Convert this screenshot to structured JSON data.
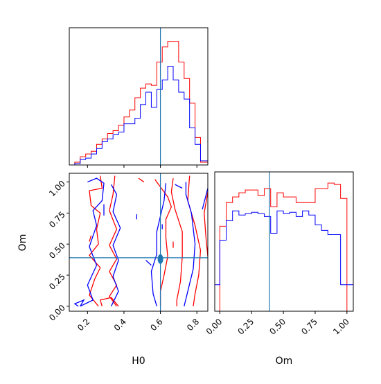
{
  "chart_data": [
    {
      "type": "histogram",
      "panel": "H0 marginal (top-left)",
      "truth": 0.6,
      "x_range": [
        0.1,
        0.86
      ],
      "y_ticks": "none",
      "series": [
        {
          "color": "#ff0000",
          "bins": [
            [
              0.1,
              0.13,
              0.0
            ],
            [
              0.13,
              0.16,
              0.02
            ],
            [
              0.16,
              0.19,
              0.06
            ],
            [
              0.19,
              0.22,
              0.08
            ],
            [
              0.22,
              0.25,
              0.1
            ],
            [
              0.25,
              0.28,
              0.15
            ],
            [
              0.28,
              0.31,
              0.19
            ],
            [
              0.31,
              0.34,
              0.23
            ],
            [
              0.34,
              0.37,
              0.25
            ],
            [
              0.37,
              0.4,
              0.29
            ],
            [
              0.4,
              0.43,
              0.35
            ],
            [
              0.43,
              0.46,
              0.4
            ],
            [
              0.46,
              0.49,
              0.49
            ],
            [
              0.49,
              0.52,
              0.56
            ],
            [
              0.52,
              0.55,
              0.59
            ],
            [
              0.55,
              0.58,
              0.58
            ],
            [
              0.58,
              0.61,
              0.75
            ],
            [
              0.61,
              0.64,
              0.86
            ],
            [
              0.64,
              0.67,
              0.9
            ],
            [
              0.67,
              0.7,
              0.9
            ],
            [
              0.7,
              0.73,
              0.75
            ],
            [
              0.73,
              0.76,
              0.63
            ],
            [
              0.76,
              0.79,
              0.45
            ],
            [
              0.79,
              0.82,
              0.2
            ],
            [
              0.82,
              0.86,
              0.02
            ]
          ]
        },
        {
          "color": "#0000ff",
          "bins": [
            [
              0.1,
              0.13,
              0.0
            ],
            [
              0.13,
              0.16,
              0.01
            ],
            [
              0.16,
              0.19,
              0.04
            ],
            [
              0.19,
              0.22,
              0.05
            ],
            [
              0.22,
              0.25,
              0.08
            ],
            [
              0.25,
              0.28,
              0.12
            ],
            [
              0.28,
              0.31,
              0.17
            ],
            [
              0.31,
              0.34,
              0.19
            ],
            [
              0.34,
              0.37,
              0.22
            ],
            [
              0.37,
              0.4,
              0.24
            ],
            [
              0.4,
              0.43,
              0.3
            ],
            [
              0.43,
              0.46,
              0.3
            ],
            [
              0.46,
              0.49,
              0.34
            ],
            [
              0.49,
              0.52,
              0.44
            ],
            [
              0.52,
              0.55,
              0.53
            ],
            [
              0.55,
              0.58,
              0.42
            ],
            [
              0.58,
              0.61,
              0.55
            ],
            [
              0.61,
              0.64,
              0.62
            ],
            [
              0.64,
              0.67,
              0.72
            ],
            [
              0.67,
              0.7,
              0.62
            ],
            [
              0.7,
              0.73,
              0.53
            ],
            [
              0.73,
              0.76,
              0.48
            ],
            [
              0.76,
              0.79,
              0.27
            ],
            [
              0.79,
              0.82,
              0.15
            ],
            [
              0.82,
              0.86,
              0.03
            ]
          ]
        }
      ]
    },
    {
      "type": "contour",
      "panel": "H0 vs Om joint (bottom-left)",
      "xlabel": "H0",
      "ylabel": "Om",
      "x_range": [
        0.1,
        0.86
      ],
      "y_range": [
        -0.04,
        1.07
      ],
      "x_ticks": [
        0.2,
        0.4,
        0.6,
        0.8
      ],
      "x_tick_labels": [
        "0.2",
        "0.4",
        "0.6",
        "0.8"
      ],
      "y_ticks": [
        0.0,
        0.25,
        0.5,
        0.75,
        1.0
      ],
      "y_tick_labels": [
        "0.00",
        "0.25",
        "0.50",
        "0.75",
        "1.00"
      ],
      "truth": {
        "x": 0.6,
        "y": 0.39
      },
      "series": [
        {
          "color": "#ff0000",
          "contours": [
            [
              [
                0.27,
                1.05
              ],
              [
                0.28,
                0.95
              ],
              [
                0.21,
                0.93
              ],
              [
                0.22,
                0.81
              ],
              [
                0.27,
                0.75
              ],
              [
                0.25,
                0.62
              ],
              [
                0.26,
                0.5
              ],
              [
                0.21,
                0.41
              ],
              [
                0.27,
                0.31
              ],
              [
                0.24,
                0.22
              ],
              [
                0.21,
                0.09
              ],
              [
                0.26,
                0.0
              ]
            ],
            [
              [
                0.35,
                1.05
              ],
              [
                0.34,
                0.9
              ],
              [
                0.32,
                0.77
              ],
              [
                0.36,
                0.62
              ],
              [
                0.32,
                0.49
              ],
              [
                0.36,
                0.38
              ],
              [
                0.32,
                0.28
              ],
              [
                0.36,
                0.17
              ],
              [
                0.32,
                0.08
              ],
              [
                0.36,
                0.0
              ]
            ],
            [
              [
                0.28,
                0.0
              ],
              [
                0.27,
                0.05
              ],
              [
                0.33,
                0.07
              ],
              [
                0.37,
                0.0
              ]
            ],
            [
              [
                0.22,
                0.57
              ],
              [
                0.21,
                0.52
              ]
            ],
            [
              [
                0.48,
                1.03
              ],
              [
                0.51,
                1.0
              ]
            ],
            [
              [
                0.57,
                1.02
              ],
              [
                0.59,
                0.98
              ],
              [
                0.64,
                0.88
              ],
              [
                0.66,
                0.8
              ],
              [
                0.63,
                0.7
              ],
              [
                0.63,
                0.55
              ],
              [
                0.64,
                0.4
              ],
              [
                0.62,
                0.25
              ],
              [
                0.6,
                0.12
              ],
              [
                0.6,
                0.0
              ]
            ],
            [
              [
                0.67,
                1.03
              ],
              [
                0.66,
                0.92
              ],
              [
                0.68,
                0.78
              ],
              [
                0.72,
                0.6
              ],
              [
                0.72,
                0.4
              ],
              [
                0.71,
                0.2
              ],
              [
                0.69,
                0.05
              ],
              [
                0.69,
                0.0
              ]
            ],
            [
              [
                0.76,
                1.05
              ],
              [
                0.75,
                0.85
              ],
              [
                0.79,
                0.65
              ],
              [
                0.82,
                0.45
              ],
              [
                0.81,
                0.25
              ],
              [
                0.79,
                0.1
              ],
              [
                0.78,
                0.0
              ]
            ],
            [
              [
                0.86,
                0.92
              ],
              [
                0.84,
                0.75
              ],
              [
                0.85,
                0.55
              ],
              [
                0.86,
                0.4
              ]
            ],
            [
              [
                0.67,
                0.52
              ],
              [
                0.67,
                0.47
              ]
            ]
          ]
        },
        {
          "color": "#0000ff",
          "contours": [
            [
              [
                0.2,
                1.0
              ],
              [
                0.25,
                1.03
              ],
              [
                0.29,
                0.99
              ],
              [
                0.28,
                0.85
              ],
              [
                0.23,
                0.77
              ],
              [
                0.25,
                0.65
              ],
              [
                0.21,
                0.48
              ],
              [
                0.25,
                0.33
              ],
              [
                0.2,
                0.17
              ],
              [
                0.23,
                0.05
              ],
              [
                0.16,
                0.0
              ]
            ],
            [
              [
                0.33,
                0.98
              ],
              [
                0.36,
                0.9
              ],
              [
                0.34,
                0.76
              ],
              [
                0.38,
                0.63
              ],
              [
                0.34,
                0.49
              ],
              [
                0.37,
                0.37
              ],
              [
                0.34,
                0.24
              ],
              [
                0.37,
                0.12
              ],
              [
                0.33,
                0.0
              ]
            ],
            [
              [
                0.16,
                0.0
              ],
              [
                0.18,
                0.05
              ],
              [
                0.13,
                0.02
              ],
              [
                0.15,
                0.0
              ]
            ],
            [
              [
                0.29,
                0.82
              ],
              [
                0.29,
                0.73
              ]
            ],
            [
              [
                0.47,
                0.74
              ],
              [
                0.47,
                0.7
              ]
            ],
            [
              [
                0.52,
                0.37
              ],
              [
                0.55,
                0.33
              ]
            ],
            [
              [
                0.63,
                0.99
              ],
              [
                0.62,
                0.85
              ],
              [
                0.58,
                0.6
              ],
              [
                0.58,
                0.42
              ],
              [
                0.55,
                0.28
              ],
              [
                0.56,
                0.1
              ],
              [
                0.58,
                0.0
              ]
            ],
            [
              [
                0.74,
                1.0
              ],
              [
                0.74,
                0.9
              ],
              [
                0.77,
                0.75
              ],
              [
                0.79,
                0.5
              ],
              [
                0.78,
                0.3
              ],
              [
                0.75,
                0.12
              ],
              [
                0.73,
                0.0
              ]
            ],
            [
              [
                0.68,
                0.98
              ],
              [
                0.72,
                0.95
              ]
            ],
            [
              [
                0.61,
                0.66
              ],
              [
                0.61,
                0.62
              ]
            ],
            [
              [
                0.83,
                0.78
              ],
              [
                0.86,
                0.95
              ]
            ]
          ]
        }
      ],
      "filled_blob": {
        "x": 0.6,
        "y": 0.38,
        "color": "#1f77b4"
      }
    },
    {
      "type": "histogram",
      "panel": "Om marginal (bottom-right)",
      "xlabel": "Om",
      "truth": 0.39,
      "x_range": [
        -0.04,
        1.05
      ],
      "x_ticks": [
        0.0,
        0.25,
        0.5,
        0.75,
        1.0
      ],
      "x_tick_labels": [
        "0.00",
        "0.25",
        "0.50",
        "0.75",
        "1.00"
      ],
      "y_ticks": "none",
      "series": [
        {
          "color": "#ff0000",
          "bins": [
            [
              -0.04,
              0.0,
              0.0
            ],
            [
              0.0,
              0.05,
              0.61
            ],
            [
              0.05,
              0.1,
              0.78
            ],
            [
              0.1,
              0.15,
              0.82
            ],
            [
              0.15,
              0.2,
              0.85
            ],
            [
              0.2,
              0.25,
              0.87
            ],
            [
              0.25,
              0.3,
              0.87
            ],
            [
              0.3,
              0.35,
              0.83
            ],
            [
              0.35,
              0.4,
              0.88
            ],
            [
              0.4,
              0.45,
              0.75
            ],
            [
              0.45,
              0.5,
              0.85
            ],
            [
              0.5,
              0.55,
              0.82
            ],
            [
              0.55,
              0.6,
              0.82
            ],
            [
              0.6,
              0.65,
              0.78
            ],
            [
              0.65,
              0.7,
              0.78
            ],
            [
              0.7,
              0.75,
              0.78
            ],
            [
              0.75,
              0.8,
              0.88
            ],
            [
              0.8,
              0.85,
              0.88
            ],
            [
              0.85,
              0.9,
              0.92
            ],
            [
              0.9,
              0.95,
              0.91
            ],
            [
              0.95,
              1.0,
              0.81
            ],
            [
              1.0,
              1.05,
              0.0
            ]
          ]
        },
        {
          "color": "#0000ff",
          "bins": [
            [
              -0.04,
              0.0,
              0.19
            ],
            [
              0.0,
              0.05,
              0.51
            ],
            [
              0.05,
              0.1,
              0.65
            ],
            [
              0.1,
              0.15,
              0.72
            ],
            [
              0.15,
              0.2,
              0.69
            ],
            [
              0.2,
              0.25,
              0.7
            ],
            [
              0.25,
              0.3,
              0.71
            ],
            [
              0.3,
              0.35,
              0.7
            ],
            [
              0.35,
              0.4,
              0.68
            ],
            [
              0.4,
              0.45,
              0.56
            ],
            [
              0.45,
              0.5,
              0.72
            ],
            [
              0.5,
              0.55,
              0.7
            ],
            [
              0.55,
              0.6,
              0.71
            ],
            [
              0.6,
              0.65,
              0.68
            ],
            [
              0.65,
              0.7,
              0.72
            ],
            [
              0.7,
              0.75,
              0.69
            ],
            [
              0.75,
              0.8,
              0.62
            ],
            [
              0.8,
              0.85,
              0.58
            ],
            [
              0.85,
              0.9,
              0.55
            ],
            [
              0.9,
              0.95,
              0.55
            ],
            [
              0.95,
              1.0,
              0.19
            ],
            [
              1.0,
              1.05,
              0.19
            ]
          ]
        }
      ]
    }
  ]
}
